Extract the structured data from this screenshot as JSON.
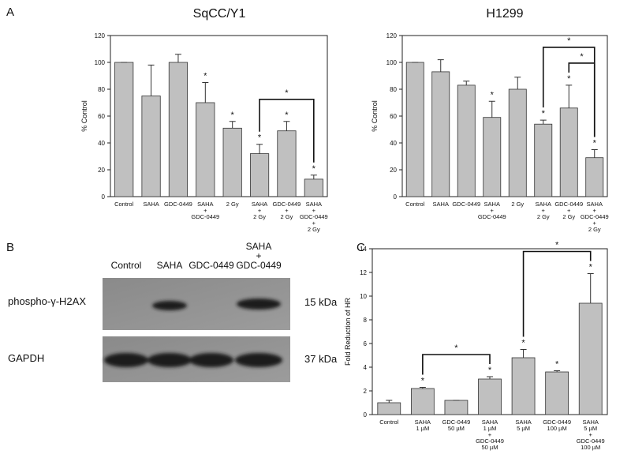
{
  "panel_labels": [
    "A",
    "B",
    "C"
  ],
  "chart_data": [
    {
      "type": "bar",
      "title": "SqCC/Y1",
      "ylabel": "% Control",
      "categories": [
        [
          "Control"
        ],
        [
          "SAHA"
        ],
        [
          "GDC-0449"
        ],
        [
          "SAHA",
          "+",
          "GDC-0449"
        ],
        [
          "2 Gy"
        ],
        [
          "SAHA",
          "+",
          "2 Gy"
        ],
        [
          "GDC-0449",
          "+",
          "2 Gy"
        ],
        [
          "SAHA",
          "+",
          "GDC-0449",
          "+",
          "2 Gy"
        ]
      ],
      "values": [
        100,
        75,
        100,
        70,
        51,
        32,
        49,
        13
      ],
      "errors": [
        0,
        23,
        6,
        15,
        5,
        7,
        7,
        3
      ],
      "markers": [
        null,
        null,
        null,
        "*",
        "*",
        "*",
        "*",
        "*"
      ],
      "brackets": [
        {
          "from": 5,
          "to": 7,
          "label": "*"
        }
      ],
      "color": "#c0c0c0",
      "ylim": [
        0,
        120
      ],
      "yticks": [
        0,
        20,
        40,
        60,
        80,
        100,
        120
      ]
    },
    {
      "type": "bar",
      "title": "H1299",
      "ylabel": "% Control",
      "categories": [
        [
          "Control"
        ],
        [
          "SAHA"
        ],
        [
          "GDC-0449"
        ],
        [
          "SAHA",
          "+",
          "GDC-0449"
        ],
        [
          "2 Gy"
        ],
        [
          "SAHA",
          "+",
          "2 Gy"
        ],
        [
          "GDC-0449",
          "+",
          "2 Gy"
        ],
        [
          "SAHA",
          "+",
          "GDC-0449",
          "+",
          "2 Gy"
        ]
      ],
      "values": [
        100,
        93,
        83,
        59,
        80,
        54,
        66,
        29
      ],
      "errors": [
        0,
        9,
        3,
        12,
        9,
        3,
        17,
        6
      ],
      "markers": [
        null,
        null,
        null,
        "*",
        null,
        "*",
        "*",
        "*"
      ],
      "brackets": [
        {
          "from": 6,
          "to": 7,
          "label": "*"
        },
        {
          "from": 5,
          "to": 7,
          "label": "*"
        }
      ],
      "color": "#c0c0c0",
      "ylim": [
        0,
        120
      ],
      "yticks": [
        0,
        20,
        40,
        60,
        80,
        100,
        120
      ]
    },
    {
      "type": "bar",
      "ylabel": "Fold Reduction of HR",
      "categories": [
        [
          "Control"
        ],
        [
          "SAHA",
          "1 µM"
        ],
        [
          "GDC-0449",
          "50 µM"
        ],
        [
          "SAHA",
          "1 µM",
          "+",
          "GDC-0449",
          "50 µM"
        ],
        [
          "SAHA",
          "5 µM"
        ],
        [
          "GDC-0449",
          "100 µM"
        ],
        [
          "SAHA",
          "5 µM",
          "+",
          "GDC-0449",
          "100 µM"
        ]
      ],
      "values": [
        1.0,
        2.2,
        1.2,
        3.0,
        4.8,
        3.6,
        9.4
      ],
      "errors": [
        0.2,
        0.1,
        0,
        0.2,
        0.7,
        0.1,
        2.5
      ],
      "markers": [
        null,
        "*",
        null,
        "*",
        "*",
        "*",
        "*"
      ],
      "brackets": [
        {
          "from": 1,
          "to": 3,
          "label": "*"
        },
        {
          "from": 4,
          "to": 6,
          "label": "*"
        }
      ],
      "color": "#c0c0c0",
      "ylim": [
        0,
        14
      ],
      "yticks": [
        0,
        2,
        4,
        6,
        8,
        10,
        12,
        14
      ]
    }
  ],
  "blot": {
    "lanes": [
      [
        "Control"
      ],
      [
        "SAHA"
      ],
      [
        "GDC-0449"
      ],
      [
        "SAHA",
        "+",
        "GDC-0449"
      ]
    ],
    "rows": [
      {
        "label": "phospho-γ-H2AX",
        "size": "15 kDa"
      },
      {
        "label": "GAPDH",
        "size": "37 kDa"
      }
    ]
  }
}
